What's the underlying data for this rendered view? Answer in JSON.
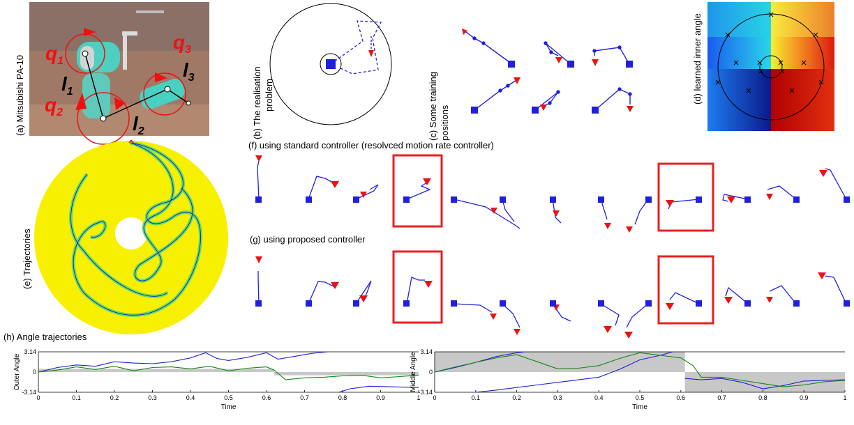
{
  "panels": {
    "a": {
      "label": "(a) Mitsubishi PA-10",
      "q1": "q",
      "q1_sub": "1",
      "q2": "q",
      "q2_sub": "2",
      "q3": "q",
      "q3_sub": "3",
      "l1": "l",
      "l1_sub": "1",
      "l2": "l",
      "l2_sub": "2",
      "l3": "l",
      "l3_sub": "3"
    },
    "b": {
      "label_line1": "(b) The realisation",
      "label_line2": "problem"
    },
    "c": {
      "label_line1": "(c) Some training",
      "label_line2": "positions"
    },
    "d": {
      "label": "(d) learned inner angle"
    },
    "e": {
      "label": "(e) Trajectories"
    },
    "f": {
      "label": "(f) using standard controller (resolvced motion rate controller)"
    },
    "g": {
      "label": "(g) using proposed controller"
    },
    "h": {
      "label": "(h) Angle trajectories"
    }
  },
  "colors": {
    "yellow": "#f7f000",
    "blue": "#1f1fdd",
    "red": "#ee1111",
    "green": "#118811",
    "gray": "#c8c8c8",
    "highlight_box": "#e82020"
  },
  "chart_data": [
    {
      "type": "line",
      "xlabel": "Time",
      "ylabel": "Outer Angle",
      "xlim": [
        0,
        1
      ],
      "ylim": [
        -3.14,
        3.14
      ],
      "x_ticks": [
        "0",
        "0.1",
        "0.2",
        "0.3",
        "0.4",
        "0.5",
        "0.6",
        "0.7",
        "0.8",
        "0.9",
        "1"
      ],
      "y_ticks": [
        "3.14",
        "0",
        "-3.14"
      ],
      "series": [
        {
          "color": "blue",
          "x": [
            0,
            0.05,
            0.1,
            0.15,
            0.2,
            0.25,
            0.3,
            0.35,
            0.4,
            0.44,
            0.47,
            0.5,
            0.55,
            0.6,
            0.63,
            0.68,
            0.72,
            0.76
          ],
          "y": [
            0,
            0.7,
            1.1,
            0.9,
            1.6,
            1.4,
            1.3,
            1.6,
            2.2,
            3.0,
            2.1,
            1.8,
            2.3,
            3.0,
            2.0,
            2.5,
            2.9,
            3.14
          ]
        },
        {
          "color": "blue",
          "x": [
            0.79,
            0.82,
            0.87,
            0.93,
            1.0
          ],
          "y": [
            -3.14,
            -2.6,
            -2.2,
            -2.3,
            -2.4
          ]
        },
        {
          "color": "green",
          "x": [
            0,
            0.05,
            0.1,
            0.15,
            0.2,
            0.25,
            0.3,
            0.35,
            0.4,
            0.45,
            0.5,
            0.55,
            0.6,
            0.62,
            0.65,
            0.7,
            0.75,
            0.8,
            0.85,
            0.9,
            0.95,
            1.0
          ],
          "y": [
            0,
            0.3,
            0.8,
            0.4,
            0.9,
            0.2,
            0.7,
            0.8,
            0.5,
            0.9,
            0.2,
            0.6,
            0.8,
            0.3,
            -1.2,
            -0.9,
            -0.8,
            -0.6,
            -0.5,
            -0.9,
            -0.7,
            -0.5
          ]
        }
      ]
    },
    {
      "type": "line",
      "xlabel": "Time",
      "ylabel": "Middle Angle",
      "xlim": [
        0,
        1
      ],
      "ylim": [
        -3.14,
        3.14
      ],
      "x_ticks": [
        "0",
        "0.1",
        "0.2",
        "0.3",
        "0.4",
        "0.5",
        "0.6",
        "0.7",
        "0.8",
        "0.9",
        "1"
      ],
      "y_ticks": [
        "3.14",
        "0",
        "-3.14"
      ],
      "series": [
        {
          "color": "blue",
          "x": [
            0,
            0.05,
            0.1,
            0.15,
            0.2,
            0.22
          ],
          "y": [
            0,
            0.7,
            1.5,
            2.4,
            3.0,
            3.14
          ]
        },
        {
          "color": "blue",
          "x": [
            0.1,
            0.15,
            0.2,
            0.3,
            0.4,
            0.45,
            0.5,
            0.55,
            0.58
          ],
          "y": [
            -3.14,
            -2.8,
            -2.4,
            -1.6,
            -0.8,
            0.4,
            1.9,
            2.6,
            3.14
          ]
        },
        {
          "color": "blue",
          "x": [
            0.61,
            0.65,
            0.7,
            0.75,
            0.8,
            0.85,
            0.9,
            0.95,
            1.0
          ],
          "y": [
            -1.0,
            -1.2,
            -1.0,
            -1.6,
            -2.6,
            -2.1,
            -1.4,
            -1.3,
            -1.2
          ]
        },
        {
          "color": "green",
          "x": [
            0,
            0.05,
            0.1,
            0.15,
            0.2,
            0.25,
            0.3,
            0.35,
            0.4,
            0.45,
            0.5,
            0.55,
            0.6,
            0.63,
            0.65,
            0.7,
            0.75,
            0.8,
            0.85,
            0.9,
            0.95,
            1.0
          ],
          "y": [
            0,
            0.8,
            1.5,
            2.2,
            2.7,
            1.6,
            0.5,
            0.6,
            1.0,
            2.1,
            3.0,
            2.6,
            2.2,
            1.0,
            -0.8,
            -0.8,
            -1.3,
            -1.8,
            -2.3,
            -2.0,
            -1.5,
            -1.3
          ]
        }
      ]
    }
  ]
}
